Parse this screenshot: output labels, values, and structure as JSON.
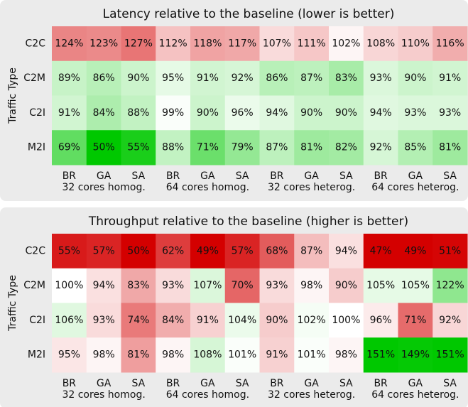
{
  "chart_data": [
    {
      "type": "heatmap",
      "title": "Latency relative to the baseline (lower is better)",
      "y_label": "Traffic Type",
      "y_categories": [
        "C2C",
        "C2M",
        "C2I",
        "M2I"
      ],
      "x_categories": [
        "BR",
        "GA",
        "SA",
        "BR",
        "GA",
        "SA",
        "BR",
        "GA",
        "SA",
        "BR",
        "GA",
        "SA"
      ],
      "groups": [
        "32 cores homog.",
        "64 cores homog.",
        "32 cores heterog.",
        "64 cores heterog."
      ],
      "values": [
        [
          124,
          123,
          127,
          112,
          118,
          117,
          107,
          111,
          102,
          108,
          110,
          116
        ],
        [
          89,
          86,
          90,
          95,
          91,
          92,
          86,
          87,
          83,
          93,
          90,
          91
        ],
        [
          91,
          84,
          88,
          99,
          90,
          96,
          94,
          90,
          90,
          94,
          93,
          93
        ],
        [
          69,
          50,
          55,
          88,
          71,
          79,
          87,
          81,
          82,
          92,
          85,
          81
        ]
      ],
      "value_labels": [
        [
          "124%",
          "123%",
          "127%",
          "112%",
          "118%",
          "117%",
          "107%",
          "111%",
          "102%",
          "108%",
          "110%",
          "116%"
        ],
        [
          "89%",
          "86%",
          "90%",
          "95%",
          "91%",
          "92%",
          "86%",
          "87%",
          "83%",
          "93%",
          "90%",
          "91%"
        ],
        [
          "91%",
          "84%",
          "88%",
          "99%",
          "90%",
          "96%",
          "94%",
          "90%",
          "90%",
          "94%",
          "93%",
          "93%"
        ],
        [
          "69%",
          "50%",
          "55%",
          "88%",
          "71%",
          "79%",
          "87%",
          "81%",
          "82%",
          "92%",
          "85%",
          "81%"
        ]
      ],
      "clim": [
        50,
        150
      ],
      "colors": [
        "#00c800",
        "#ffffff",
        "#d40000"
      ]
    },
    {
      "type": "heatmap",
      "title": "Throughput relative to the baseline (higher is better)",
      "y_label": "Traffic Type",
      "y_categories": [
        "C2C",
        "C2M",
        "C2I",
        "M2I"
      ],
      "x_categories": [
        "BR",
        "GA",
        "SA",
        "BR",
        "GA",
        "SA",
        "BR",
        "GA",
        "SA",
        "BR",
        "GA",
        "SA"
      ],
      "groups": [
        "32 cores homog.",
        "64 cores homog.",
        "32 cores heterog.",
        "64 cores heterog."
      ],
      "values": [
        [
          55,
          57,
          50,
          62,
          49,
          57,
          68,
          87,
          94,
          47,
          49,
          51
        ],
        [
          100,
          94,
          83,
          93,
          107,
          70,
          93,
          98,
          90,
          105,
          105,
          122
        ],
        [
          106,
          93,
          74,
          84,
          91,
          104,
          90,
          102,
          100,
          96,
          71,
          92
        ],
        [
          95,
          98,
          81,
          98,
          108,
          101,
          91,
          101,
          98,
          151,
          149,
          151
        ]
      ],
      "value_labels": [
        [
          "55%",
          "57%",
          "50%",
          "62%",
          "49%",
          "57%",
          "68%",
          "87%",
          "94%",
          "47%",
          "49%",
          "51%"
        ],
        [
          "100%",
          "94%",
          "83%",
          "93%",
          "107%",
          "70%",
          "93%",
          "98%",
          "90%",
          "105%",
          "105%",
          "122%"
        ],
        [
          "106%",
          "93%",
          "74%",
          "84%",
          "91%",
          "104%",
          "90%",
          "102%",
          "100%",
          "96%",
          "71%",
          "92%"
        ],
        [
          "95%",
          "98%",
          "81%",
          "98%",
          "108%",
          "101%",
          "91%",
          "101%",
          "98%",
          "151%",
          "149%",
          "151%"
        ]
      ],
      "clim": [
        50,
        150
      ],
      "colors": [
        "#d40000",
        "#ffffff",
        "#00c800"
      ]
    }
  ]
}
